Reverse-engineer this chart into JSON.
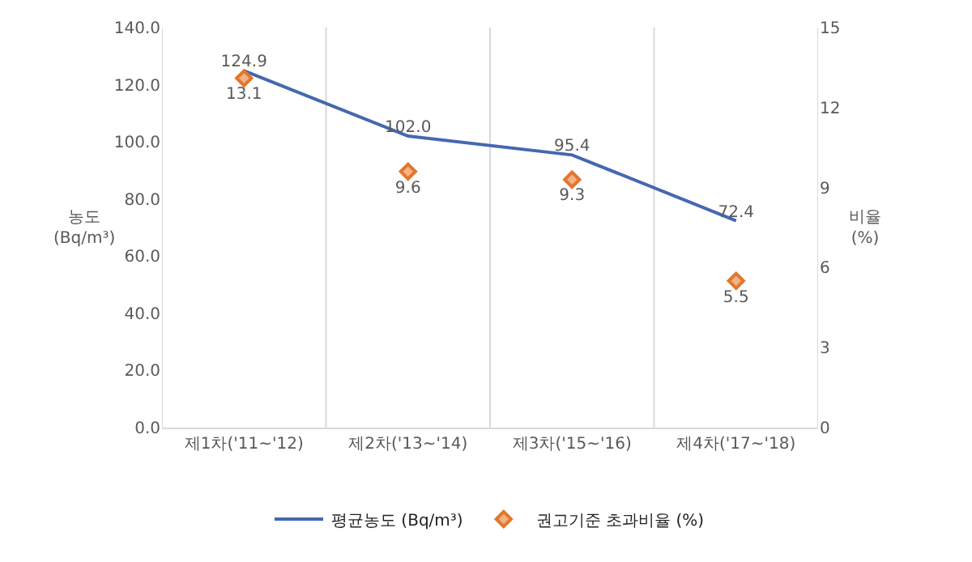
{
  "chart_data": {
    "type": "line",
    "categories": [
      "제1차('11~'12)",
      "제2차('13~'14)",
      "제3차('15~'16)",
      "제4차('17~'18)"
    ],
    "ylabel": "농도\n(Bq/m³)",
    "y2label": "비율\n(%)",
    "series": [
      {
        "name": "평균농도 (Bq/m³)",
        "color": "#4468b0",
        "values": [
          124.9,
          102.0,
          95.4,
          72.4
        ],
        "value_labels": [
          "124.9",
          "102.0",
          "95.4",
          "72.4"
        ],
        "marker": "none"
      },
      {
        "name": "권고기준 초과비율 (%)",
        "type": "scatter",
        "axis": "y2",
        "color": "#e2772e",
        "values": [
          13.1,
          9.6,
          9.3,
          5.5
        ],
        "value_labels": [
          "13.1",
          "9.6",
          "9.3",
          "5.5"
        ],
        "marker": "diamond"
      }
    ],
    "ylim": [
      0,
      140
    ],
    "yticks": [
      {
        "value": 0,
        "label": "0.0"
      },
      {
        "value": 20,
        "label": "20.0"
      },
      {
        "value": 40,
        "label": "40.0"
      },
      {
        "value": 60,
        "label": "60.0"
      },
      {
        "value": 80,
        "label": "80.0"
      },
      {
        "value": 100,
        "label": "100.0"
      },
      {
        "value": 120,
        "label": "120.0"
      },
      {
        "value": 140,
        "label": "140.0"
      }
    ],
    "y2lim": [
      0,
      15
    ],
    "y2ticks": [
      0,
      3,
      6,
      9,
      12,
      15
    ],
    "grid": "x",
    "legend": "bottom"
  }
}
